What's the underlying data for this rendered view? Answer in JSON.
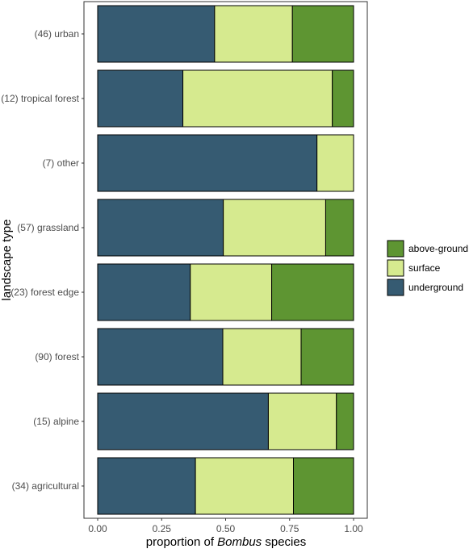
{
  "chart_data": {
    "type": "bar",
    "orientation": "horizontal",
    "stacked": true,
    "categories": [
      "(46) urban",
      "(12) tropical forest",
      "(7) other",
      "(57) grassland",
      "(23) forest edge",
      "(90) forest",
      "(15) alpine",
      "(34) agricultural"
    ],
    "series": [
      {
        "name": "underground",
        "color": "#365b72",
        "values": [
          0.457,
          0.333,
          0.857,
          0.491,
          0.362,
          0.489,
          0.667,
          0.382
        ]
      },
      {
        "name": "surface",
        "color": "#d6ea8f",
        "values": [
          0.304,
          0.584,
          0.143,
          0.4,
          0.318,
          0.306,
          0.266,
          0.383
        ]
      },
      {
        "name": "above-ground",
        "color": "#5e9532",
        "values": [
          0.239,
          0.083,
          0.0,
          0.109,
          0.32,
          0.205,
          0.067,
          0.235
        ]
      }
    ],
    "xlabel_parts": [
      "proportion of ",
      "Bombus",
      " species"
    ],
    "ylabel": "landscape type",
    "xlim": [
      0,
      1
    ],
    "xticks": [
      "0.00",
      "0.25",
      "0.50",
      "0.75",
      "1.00"
    ],
    "legend_order": [
      "above-ground",
      "surface",
      "underground"
    ],
    "legend_position": "right",
    "grid": false
  }
}
